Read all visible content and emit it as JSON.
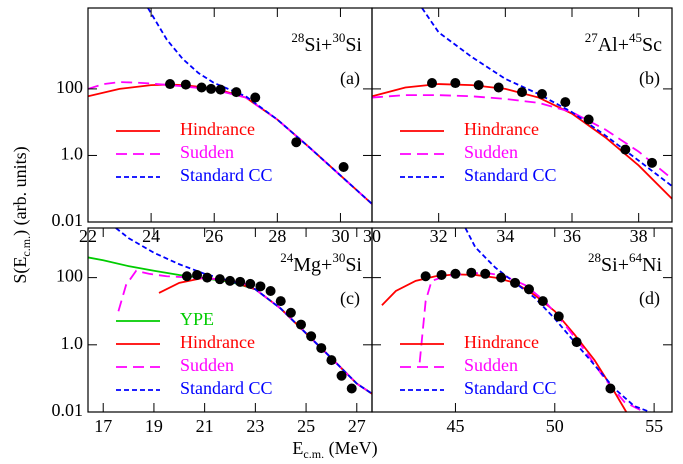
{
  "figure": {
    "ylabel": [
      "S(E",
      "c.m.",
      ") (arb. units)"
    ],
    "xlabel": [
      "E",
      "c.m.",
      " (MeV)"
    ]
  },
  "chart_data": [
    {
      "type": "line",
      "panel": "(a)",
      "reaction": [
        "28",
        "Si+",
        "30",
        "Si"
      ],
      "yscale": "log",
      "xlim": [
        22,
        31
      ],
      "ylim": [
        0.01,
        27000
      ],
      "xticks": [
        22,
        24,
        26,
        28,
        30
      ],
      "yticks": [
        0.01,
        {
          "value": 1,
          "label": "1.0"
        },
        100
      ],
      "series": [
        {
          "name": "Hindrance",
          "color": "#ff0000",
          "linestyle": "solid",
          "x": [
            22,
            23,
            24,
            24.6,
            25,
            26,
            27,
            28,
            29,
            30,
            31
          ],
          "values": [
            60,
            100,
            130,
            135,
            130,
            105,
            55,
            12,
            1.8,
            0.25,
            0.035
          ]
        },
        {
          "name": "Sudden",
          "color": "#ff00ff",
          "linestyle": "dashed",
          "x": [
            22,
            22.5,
            23,
            23.5,
            24,
            25,
            26,
            27,
            28,
            29,
            30,
            31
          ],
          "values": [
            100,
            140,
            160,
            155,
            145,
            120,
            95,
            55,
            12,
            1.8,
            0.25,
            0.035
          ]
        },
        {
          "name": "Standard CC",
          "color": "#0000ff",
          "linestyle": "short-dashed",
          "x": [
            23.9,
            24.5,
            25,
            25.5,
            26,
            27,
            28,
            29,
            30,
            31
          ],
          "values": [
            27000,
            3000,
            800,
            300,
            150,
            60,
            12,
            1.8,
            0.25,
            0.035
          ]
        }
      ],
      "points": {
        "color": "#000000",
        "x": [
          24.6,
          25.1,
          25.6,
          25.9,
          26.2,
          26.7,
          27.3,
          28.6,
          30.1
        ],
        "values": [
          140,
          135,
          110,
          100,
          95,
          80,
          55,
          2.5,
          0.45
        ]
      }
    },
    {
      "type": "line",
      "panel": "(b)",
      "reaction": [
        "27",
        "Al+",
        "45",
        "Sc"
      ],
      "yscale": "log",
      "xlim": [
        30,
        39
      ],
      "ylim": [
        0.01,
        27000
      ],
      "xticks": [
        30,
        32,
        34,
        36,
        38
      ],
      "yticks": [
        0.01,
        1,
        100
      ],
      "series": [
        {
          "name": "Hindrance",
          "color": "#ff0000",
          "linestyle": "solid",
          "x": [
            30,
            31,
            32,
            33,
            34,
            35,
            36,
            37,
            38,
            39
          ],
          "values": [
            60,
            110,
            140,
            130,
            100,
            55,
            18,
            3.5,
            0.5,
            0.05
          ]
        },
        {
          "name": "Sudden",
          "color": "#ff00ff",
          "linestyle": "dashed",
          "x": [
            30,
            31,
            32,
            33,
            34,
            35,
            36,
            37,
            38,
            39
          ],
          "values": [
            55,
            65,
            65,
            60,
            50,
            38,
            20,
            6,
            1.3,
            0.2
          ]
        },
        {
          "name": "Standard CC",
          "color": "#0000ff",
          "linestyle": "short-dashed",
          "x": [
            31.5,
            32,
            33,
            34,
            35,
            36,
            37,
            38,
            39
          ],
          "values": [
            27000,
            5000,
            900,
            200,
            70,
            20,
            4,
            0.7,
            0.12
          ]
        }
      ],
      "points": {
        "color": "#000000",
        "x": [
          31.8,
          32.5,
          33.2,
          33.8,
          34.5,
          35.1,
          35.8,
          36.5,
          37.6,
          38.4
        ],
        "values": [
          150,
          150,
          130,
          110,
          80,
          70,
          40,
          12,
          1.5,
          0.6
        ]
      }
    },
    {
      "type": "line",
      "panel": "(c)",
      "reaction": [
        "24",
        "Mg+",
        "30",
        "Si"
      ],
      "yscale": "log",
      "xlim": [
        16.4,
        27.6
      ],
      "ylim": [
        0.01,
        3000
      ],
      "xticks": [
        17,
        19,
        21,
        23,
        25,
        27
      ],
      "yticks": [
        0.01,
        {
          "value": 1,
          "label": "1.0"
        },
        100
      ],
      "series": [
        {
          "name": "YPE",
          "color": "#00cc00",
          "linestyle": "solid",
          "x": [
            16.4,
            17,
            18,
            19,
            20,
            21,
            22,
            23,
            24,
            25,
            26,
            27,
            27.6
          ],
          "values": [
            400,
            330,
            220,
            160,
            120,
            95,
            75,
            45,
            12,
            2.2,
            0.4,
            0.07,
            0.035
          ]
        },
        {
          "name": "Hindrance",
          "color": "#ff0000",
          "linestyle": "solid",
          "x": [
            19.2,
            20,
            21,
            22,
            23,
            24,
            25,
            26,
            27,
            27.6
          ],
          "values": [
            35,
            70,
            100,
            80,
            45,
            12,
            2.2,
            0.4,
            0.07,
            0.035
          ]
        },
        {
          "name": "Sudden",
          "color": "#ff00ff",
          "linestyle": "dashed",
          "x": [
            17.6,
            17.9,
            18.3,
            18.8,
            19.5,
            20.5,
            21.5,
            22.5,
            23,
            24,
            25,
            26,
            27,
            27.6
          ],
          "values": [
            10,
            60,
            160,
            130,
            110,
            100,
            90,
            70,
            45,
            12,
            2.2,
            0.4,
            0.07,
            0.035
          ]
        },
        {
          "name": "Standard CC",
          "color": "#0000ff",
          "linestyle": "short-dashed",
          "x": [
            17.5,
            18,
            19,
            20,
            21,
            22,
            23,
            24,
            25,
            26,
            27,
            27.6
          ],
          "values": [
            3000,
            1500,
            550,
            250,
            130,
            80,
            45,
            12,
            2.2,
            0.4,
            0.07,
            0.035
          ]
        }
      ],
      "points": {
        "color": "#000000",
        "x": [
          20.3,
          20.7,
          21.1,
          21.6,
          22,
          22.4,
          22.8,
          23.2,
          23.6,
          24,
          24.4,
          24.8,
          25.2,
          25.6,
          26,
          26.4,
          26.8
        ],
        "values": [
          110,
          120,
          100,
          90,
          80,
          75,
          65,
          55,
          40,
          20,
          9,
          4,
          1.8,
          0.8,
          0.35,
          0.12,
          0.05
        ]
      }
    },
    {
      "type": "line",
      "panel": "(d)",
      "reaction": [
        "28",
        "Si+",
        "64",
        "Ni"
      ],
      "yscale": "log",
      "xlim": [
        40.8,
        55.9
      ],
      "ylim": [
        0.01,
        3000
      ],
      "xticks": [
        45,
        50,
        55
      ],
      "yticks": [
        0.01,
        1,
        100
      ],
      "series": [
        {
          "name": "Hindrance",
          "color": "#ff0000",
          "linestyle": "solid",
          "x": [
            41.3,
            42,
            43,
            44,
            45,
            46,
            47,
            48,
            49,
            50,
            51,
            52,
            53,
            53.6
          ],
          "values": [
            15,
            40,
            80,
            110,
            125,
            120,
            100,
            70,
            30,
            10,
            2,
            0.35,
            0.04,
            0.01
          ]
        },
        {
          "name": "Sudden",
          "color": "#ff00ff",
          "linestyle": "dashed",
          "x": [
            43.2,
            43.5,
            43.8,
            44.5,
            45.5,
            46.5,
            47.5,
            48.5,
            49.5,
            50.5,
            51.5,
            52.5,
            53.5,
            54.5
          ],
          "values": [
            0.3,
            20,
            80,
            110,
            130,
            140,
            110,
            60,
            20,
            4,
            0.7,
            0.1,
            0.02,
            0.01
          ]
        },
        {
          "name": "Standard CC",
          "color": "#0000ff",
          "linestyle": "short-dashed",
          "x": [
            45.5,
            46,
            47,
            48,
            49,
            50,
            51,
            52,
            53,
            54,
            54.8
          ],
          "values": [
            3000,
            800,
            200,
            70,
            25,
            6,
            1.2,
            0.25,
            0.05,
            0.015,
            0.01
          ]
        }
      ],
      "points": {
        "color": "#000000",
        "x": [
          43.5,
          44.3,
          45,
          45.8,
          46.5,
          47.3,
          48,
          48.7,
          49.4,
          50.2,
          51.1,
          52.8
        ],
        "values": [
          110,
          120,
          130,
          140,
          130,
          100,
          70,
          45,
          20,
          7,
          1.2,
          0.05
        ]
      }
    }
  ]
}
